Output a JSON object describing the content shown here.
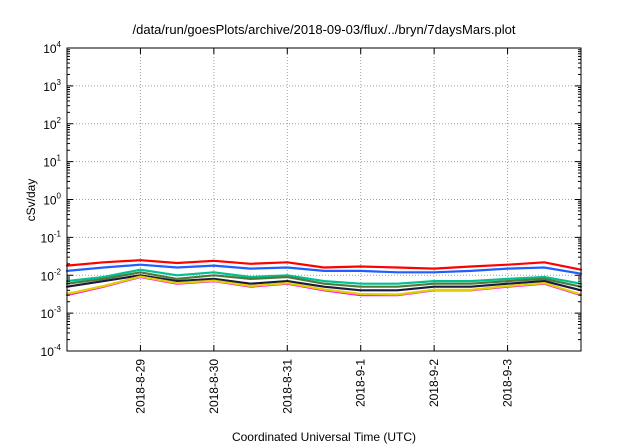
{
  "chart_data": {
    "type": "line",
    "title": "/data/run/goesPlots/archive/2018-09-03/flux/../bryn/7daysMars.plot",
    "xlabel": "Coordinated Universal Time (UTC)",
    "ylabel": "cSv/day",
    "y_scale": "log",
    "ylim": [
      0.0001,
      10000
    ],
    "y_ticks": [
      {
        "base": "10",
        "exp": "-4",
        "value": 0.0001
      },
      {
        "base": "10",
        "exp": "-3",
        "value": 0.001
      },
      {
        "base": "10",
        "exp": "-2",
        "value": 0.01
      },
      {
        "base": "10",
        "exp": "-1",
        "value": 0.1
      },
      {
        "base": "10",
        "exp": "0",
        "value": 1
      },
      {
        "base": "10",
        "exp": "1",
        "value": 10
      },
      {
        "base": "10",
        "exp": "2",
        "value": 100
      },
      {
        "base": "10",
        "exp": "3",
        "value": 1000
      },
      {
        "base": "10",
        "exp": "4",
        "value": 10000
      }
    ],
    "x_ticks": [
      "2018-8-29",
      "2018-8-30",
      "2018-8-31",
      "2018-9-1",
      "2018-9-2",
      "2018-9-3"
    ],
    "xlim": [
      "2018-08-28T00:00",
      "2018-09-04T00:00"
    ],
    "grid": true,
    "legend": "none",
    "series": [
      {
        "color": "#ff0000",
        "x": [
          "2018-08-28T00:00",
          "2018-08-28T12:00",
          "2018-08-29T00:00",
          "2018-08-29T12:00",
          "2018-08-30T00:00",
          "2018-08-30T12:00",
          "2018-08-31T00:00",
          "2018-08-31T12:00",
          "2018-09-01T00:00",
          "2018-09-01T12:00",
          "2018-09-02T00:00",
          "2018-09-02T12:00",
          "2018-09-03T00:00",
          "2018-09-03T12:00",
          "2018-09-04T00:00"
        ],
        "values": [
          0.018,
          0.022,
          0.025,
          0.021,
          0.024,
          0.02,
          0.022,
          0.016,
          0.017,
          0.016,
          0.015,
          0.017,
          0.019,
          0.022,
          0.014
        ]
      },
      {
        "color": "#1f5fff",
        "x": [
          "2018-08-28T00:00",
          "2018-08-28T12:00",
          "2018-08-29T00:00",
          "2018-08-29T12:00",
          "2018-08-30T00:00",
          "2018-08-30T12:00",
          "2018-08-31T00:00",
          "2018-08-31T12:00",
          "2018-09-01T00:00",
          "2018-09-01T12:00",
          "2018-09-02T00:00",
          "2018-09-02T12:00",
          "2018-09-03T00:00",
          "2018-09-03T12:00",
          "2018-09-04T00:00"
        ],
        "values": [
          0.013,
          0.016,
          0.019,
          0.016,
          0.018,
          0.015,
          0.016,
          0.013,
          0.013,
          0.012,
          0.012,
          0.013,
          0.015,
          0.016,
          0.011
        ]
      },
      {
        "color": "#00c090",
        "x": [
          "2018-08-28T00:00",
          "2018-08-28T12:00",
          "2018-08-29T00:00",
          "2018-08-29T12:00",
          "2018-08-30T00:00",
          "2018-08-30T12:00",
          "2018-08-31T00:00",
          "2018-08-31T12:00",
          "2018-09-01T00:00",
          "2018-09-01T12:00",
          "2018-09-02T00:00",
          "2018-09-02T12:00",
          "2018-09-03T00:00",
          "2018-09-03T12:00",
          "2018-09-04T00:00"
        ],
        "values": [
          0.007,
          0.009,
          0.014,
          0.01,
          0.012,
          0.009,
          0.01,
          0.007,
          0.006,
          0.006,
          0.007,
          0.007,
          0.008,
          0.009,
          0.006
        ]
      },
      {
        "color": "#4e7a3a",
        "x": [
          "2018-08-28T00:00",
          "2018-08-28T12:00",
          "2018-08-29T00:00",
          "2018-08-29T12:00",
          "2018-08-30T00:00",
          "2018-08-30T12:00",
          "2018-08-31T00:00",
          "2018-08-31T12:00",
          "2018-09-01T00:00",
          "2018-09-01T12:00",
          "2018-09-02T00:00",
          "2018-09-02T12:00",
          "2018-09-03T00:00",
          "2018-09-03T12:00",
          "2018-09-04T00:00"
        ],
        "values": [
          0.006,
          0.008,
          0.012,
          0.008,
          0.01,
          0.008,
          0.009,
          0.006,
          0.005,
          0.005,
          0.006,
          0.006,
          0.007,
          0.008,
          0.005
        ]
      },
      {
        "color": "#1a1a40",
        "x": [
          "2018-08-28T00:00",
          "2018-08-28T12:00",
          "2018-08-29T00:00",
          "2018-08-29T12:00",
          "2018-08-30T00:00",
          "2018-08-30T12:00",
          "2018-08-31T00:00",
          "2018-08-31T12:00",
          "2018-09-01T00:00",
          "2018-09-01T12:00",
          "2018-09-02T00:00",
          "2018-09-02T12:00",
          "2018-09-03T00:00",
          "2018-09-03T12:00",
          "2018-09-04T00:00"
        ],
        "values": [
          0.005,
          0.007,
          0.01,
          0.007,
          0.008,
          0.006,
          0.007,
          0.005,
          0.004,
          0.004,
          0.005,
          0.005,
          0.006,
          0.007,
          0.004
        ]
      },
      {
        "color": "#ff00ff",
        "x": [
          "2018-08-28T00:00",
          "2018-08-28T12:00",
          "2018-08-29T00:00",
          "2018-08-29T12:00",
          "2018-08-30T00:00",
          "2018-08-30T12:00",
          "2018-08-31T00:00",
          "2018-08-31T12:00",
          "2018-09-01T00:00",
          "2018-09-01T12:00",
          "2018-09-02T00:00",
          "2018-09-02T12:00",
          "2018-09-03T00:00",
          "2018-09-03T12:00",
          "2018-09-04T00:00"
        ],
        "values": [
          0.003,
          0.005,
          0.009,
          0.006,
          0.007,
          0.005,
          0.006,
          0.004,
          0.003,
          0.003,
          0.004,
          0.004,
          0.005,
          0.006,
          0.003
        ]
      },
      {
        "color": "#e0d000",
        "x": [
          "2018-08-28T00:00",
          "2018-08-28T12:00",
          "2018-08-29T00:00",
          "2018-08-29T12:00",
          "2018-08-30T00:00",
          "2018-08-30T12:00",
          "2018-08-31T00:00",
          "2018-08-31T12:00",
          "2018-09-01T00:00",
          "2018-09-01T12:00",
          "2018-09-02T00:00",
          "2018-09-02T12:00",
          "2018-09-03T00:00",
          "2018-09-03T12:00",
          "2018-09-04T00:00"
        ],
        "values": [
          0.0032,
          0.0052,
          0.0092,
          0.0062,
          0.0072,
          0.0052,
          0.0062,
          0.0042,
          0.0032,
          0.0031,
          0.0041,
          0.0041,
          0.0052,
          0.0062,
          0.0031
        ]
      }
    ]
  }
}
